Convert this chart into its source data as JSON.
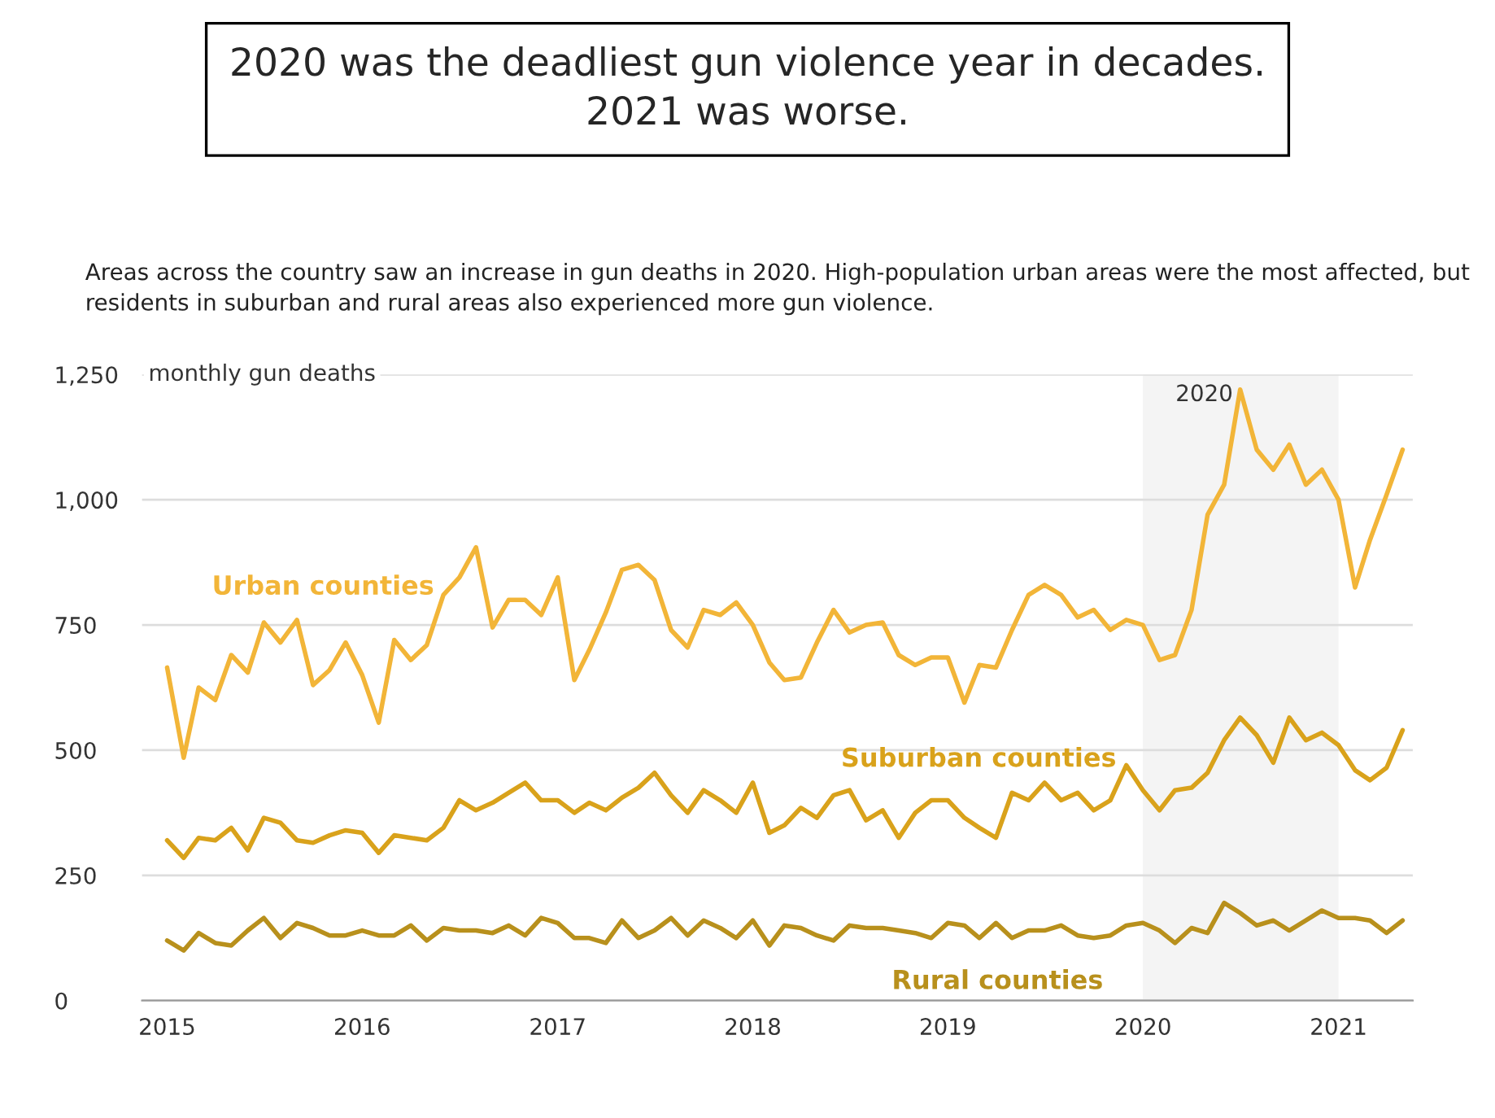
{
  "chart_data": {
    "type": "line",
    "title": "2020 was the deadliest gun violence year in decades.\n2021 was worse.",
    "subtitle": "Areas across the country saw an increase in gun deaths in 2020. High-population urban areas were the most affected, but residents in suburban and rural areas also experienced more gun violence.",
    "ylabel": "monthly gun deaths",
    "x": [
      "2015-01",
      "2015-02",
      "2015-03",
      "2015-04",
      "2015-05",
      "2015-06",
      "2015-07",
      "2015-08",
      "2015-09",
      "2015-10",
      "2015-11",
      "2015-12",
      "2016-01",
      "2016-02",
      "2016-03",
      "2016-04",
      "2016-05",
      "2016-06",
      "2016-07",
      "2016-08",
      "2016-09",
      "2016-10",
      "2016-11",
      "2016-12",
      "2017-01",
      "2017-02",
      "2017-03",
      "2017-04",
      "2017-05",
      "2017-06",
      "2017-07",
      "2017-08",
      "2017-09",
      "2017-10",
      "2017-11",
      "2017-12",
      "2018-01",
      "2018-02",
      "2018-03",
      "2018-04",
      "2018-05",
      "2018-06",
      "2018-07",
      "2018-08",
      "2018-09",
      "2018-10",
      "2018-11",
      "2018-12",
      "2019-01",
      "2019-02",
      "2019-03",
      "2019-04",
      "2019-05",
      "2019-06",
      "2019-07",
      "2019-08",
      "2019-09",
      "2019-10",
      "2019-11",
      "2019-12",
      "2020-01",
      "2020-02",
      "2020-03",
      "2020-04",
      "2020-05",
      "2020-06",
      "2020-07",
      "2020-08",
      "2020-09",
      "2020-10",
      "2020-11",
      "2020-12",
      "2021-01",
      "2021-02",
      "2021-03",
      "2021-04",
      "2021-05"
    ],
    "series": [
      {
        "name": "Urban counties",
        "color": "#f2b538",
        "values": [
          665,
          485,
          625,
          600,
          690,
          655,
          755,
          715,
          760,
          630,
          660,
          715,
          650,
          555,
          720,
          680,
          710,
          810,
          845,
          905,
          745,
          800,
          800,
          770,
          845,
          640,
          700,
          775,
          860,
          870,
          840,
          740,
          705,
          780,
          770,
          795,
          750,
          675,
          640,
          645,
          715,
          780,
          735,
          750,
          755,
          690,
          670,
          685,
          685,
          595,
          670,
          665,
          740,
          810,
          830,
          810,
          765,
          780,
          740,
          760,
          750,
          680,
          690,
          780,
          970,
          1030,
          1220,
          1100,
          1060,
          1110,
          1030,
          1060,
          1000,
          825,
          920,
          1010,
          1100
        ]
      },
      {
        "name": "Suburban counties",
        "color": "#d9a21b",
        "values": [
          320,
          285,
          325,
          320,
          345,
          300,
          365,
          355,
          320,
          315,
          330,
          340,
          335,
          295,
          330,
          325,
          320,
          345,
          400,
          380,
          395,
          415,
          435,
          400,
          400,
          375,
          395,
          380,
          405,
          425,
          455,
          410,
          375,
          420,
          400,
          375,
          435,
          335,
          350,
          385,
          365,
          410,
          420,
          360,
          380,
          325,
          375,
          400,
          400,
          365,
          345,
          325,
          415,
          400,
          435,
          400,
          415,
          380,
          400,
          470,
          420,
          380,
          420,
          425,
          455,
          520,
          565,
          530,
          475,
          565,
          520,
          535,
          510,
          460,
          440,
          465,
          540
        ]
      },
      {
        "name": "Rural counties",
        "color": "#b8901c",
        "values": [
          120,
          100,
          135,
          115,
          110,
          140,
          165,
          125,
          155,
          145,
          130,
          130,
          140,
          130,
          130,
          150,
          120,
          145,
          140,
          140,
          135,
          150,
          130,
          165,
          155,
          125,
          125,
          115,
          160,
          125,
          140,
          165,
          130,
          160,
          145,
          125,
          160,
          110,
          150,
          145,
          130,
          120,
          150,
          145,
          145,
          140,
          135,
          125,
          155,
          150,
          125,
          155,
          125,
          140,
          140,
          150,
          130,
          125,
          130,
          150,
          155,
          140,
          115,
          145,
          135,
          195,
          175,
          150,
          160,
          140,
          160,
          180,
          165,
          165,
          160,
          135,
          160
        ]
      }
    ],
    "xlim": [
      "2014-11-15",
      "2021-05-20"
    ],
    "xticks": [
      {
        "value": "2015-01",
        "label": "2015"
      },
      {
        "value": "2016-01",
        "label": "2016"
      },
      {
        "value": "2017-01",
        "label": "2017"
      },
      {
        "value": "2018-01",
        "label": "2018"
      },
      {
        "value": "2019-01",
        "label": "2019"
      },
      {
        "value": "2020-01",
        "label": "2020"
      },
      {
        "value": "2021-01",
        "label": "2021"
      }
    ],
    "ylim": [
      0,
      1250
    ],
    "yticks": [
      0,
      250,
      500,
      750,
      {
        "value": 1000,
        "label": "1,000"
      },
      {
        "value": 1250,
        "label": "1,250"
      }
    ],
    "bands": [
      {
        "axis": "x",
        "from": "2020-01",
        "to": "2021-01",
        "label": "2020",
        "color": "#f4f4f4"
      }
    ],
    "grid": "y",
    "legend": false,
    "line_style": "solid",
    "marker": "none"
  }
}
